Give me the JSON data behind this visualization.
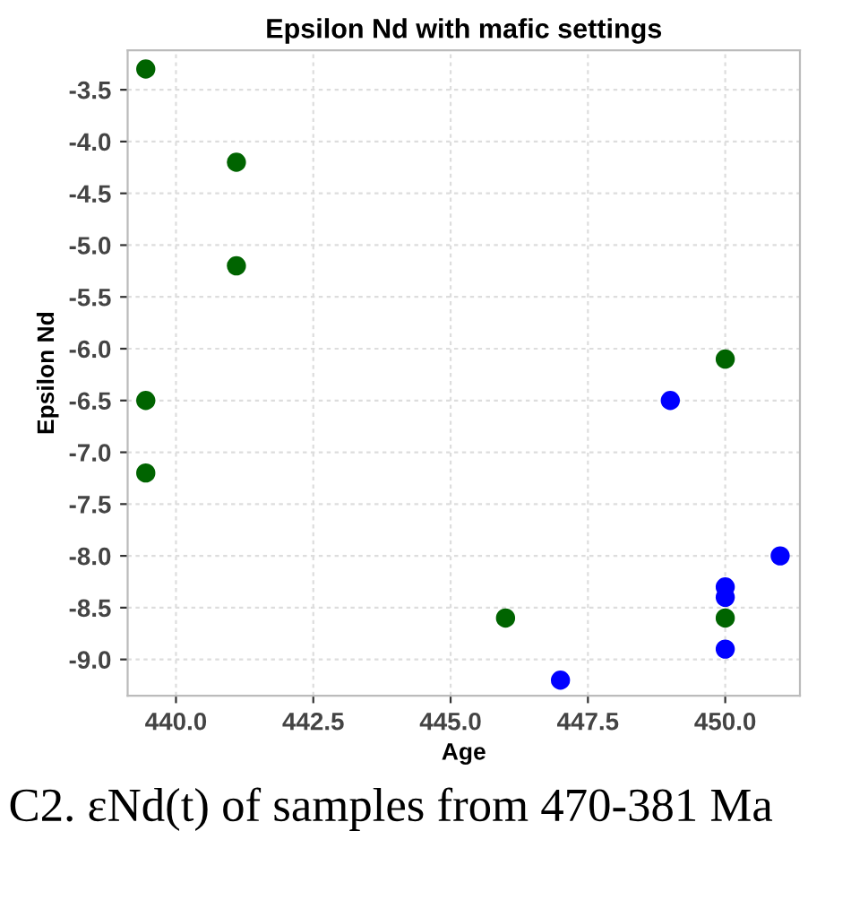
{
  "chart_data": {
    "type": "scatter",
    "title": "Epsilon Nd with mafic settings",
    "xlabel": "Age",
    "ylabel": "Epsilon Nd",
    "series": [
      {
        "color": "#006400",
        "x": [
          439.45,
          441.1,
          441.1,
          439.45,
          439.45,
          446.0,
          450.0,
          450.0
        ],
        "values": [
          -3.3,
          -4.2,
          -5.2,
          -6.5,
          -7.2,
          -8.6,
          -6.1,
          -8.6
        ]
      },
      {
        "color": "#0000ff",
        "x": [
          449.0,
          451.0,
          450.0,
          450.0,
          450.0,
          447.0
        ],
        "values": [
          -6.5,
          -8.0,
          -8.3,
          -8.4,
          -8.9,
          -9.2
        ]
      }
    ],
    "xlim": [
      439.12,
      451.36
    ],
    "ylim": [
      -9.35,
      -3.12
    ],
    "xticks": [
      {
        "value": 440,
        "label": "440.0"
      },
      442.5,
      {
        "value": 445,
        "label": "445.0"
      },
      447.5,
      {
        "value": 450,
        "label": "450.0"
      }
    ],
    "yticks": [
      -3.5,
      {
        "value": -4,
        "label": "-4.0"
      },
      -4.5,
      {
        "value": -5,
        "label": "-5.0"
      },
      -5.5,
      {
        "value": -6,
        "label": "-6.0"
      },
      -6.5,
      {
        "value": -7,
        "label": "-7.0"
      },
      -7.5,
      {
        "value": -8,
        "label": "-8.0"
      },
      -8.5,
      {
        "value": -9,
        "label": "-9.0"
      }
    ],
    "grid": true,
    "marker": "circle",
    "annotations": [
      "C2. εNd(t) of samples from 470-381 Ma"
    ]
  }
}
